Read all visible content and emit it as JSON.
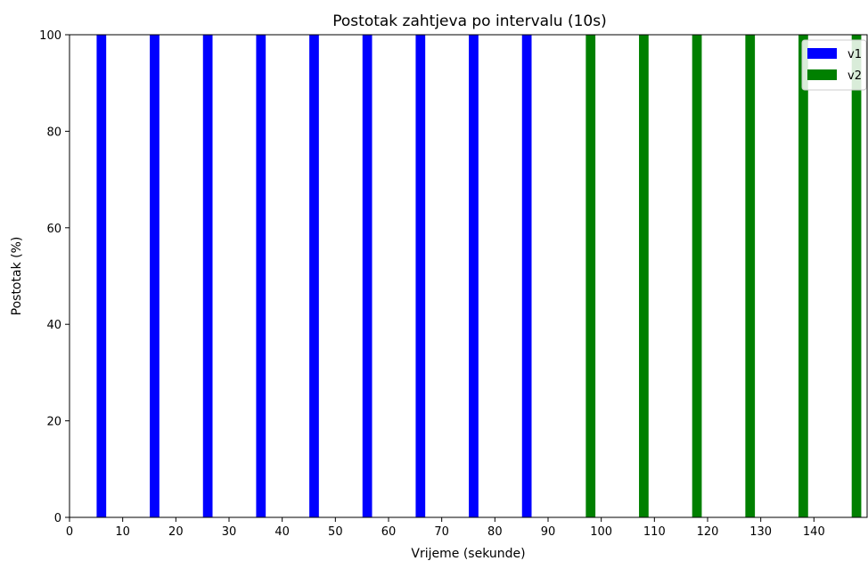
{
  "chart_data": {
    "type": "bar",
    "title": "Postotak zahtjeva po intervalu (10s)",
    "xlabel": "Vrijeme (sekunde)",
    "ylabel": "Postotak (%)",
    "xlim": [
      0,
      150
    ],
    "ylim": [
      0,
      100
    ],
    "xticks": [
      0,
      10,
      20,
      30,
      40,
      50,
      60,
      70,
      80,
      90,
      100,
      110,
      120,
      130,
      140
    ],
    "yticks": [
      0,
      20,
      40,
      60,
      80,
      100
    ],
    "bar_width": 1.8,
    "grid": false,
    "legend_position": "top-right",
    "series": [
      {
        "name": "v1",
        "color": "#0000ff",
        "x": [
          6,
          16,
          26,
          36,
          46,
          56,
          66,
          76,
          86
        ],
        "values": [
          100,
          100,
          100,
          100,
          100,
          100,
          100,
          100,
          100
        ]
      },
      {
        "name": "v2",
        "color": "#008000",
        "x": [
          98,
          108,
          118,
          128,
          138,
          148
        ],
        "values": [
          100,
          100,
          100,
          100,
          100,
          100
        ]
      }
    ]
  }
}
